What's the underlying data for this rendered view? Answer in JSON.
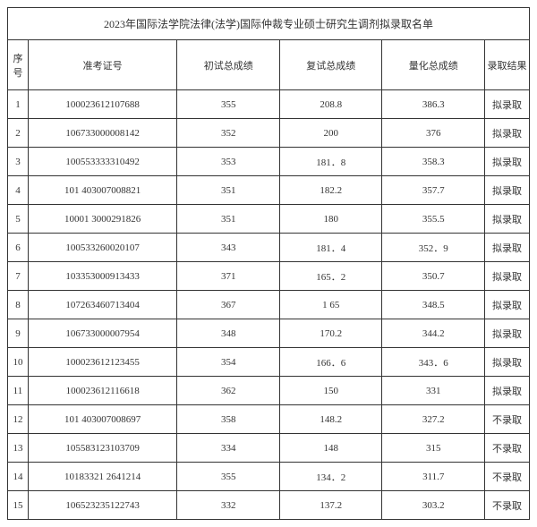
{
  "table": {
    "title": "2023年国际法学院法律(法学)国际仲裁专业硕士研究生调剂拟录取名单",
    "headers": {
      "seq": "序号",
      "exam_id": "准考证号",
      "score1": "初试总成绩",
      "score2": "复试总成绩",
      "score3": "量化总成绩",
      "result": "录取结果"
    },
    "rows": [
      {
        "seq": "1",
        "exam_id": "100023612107688",
        "score1": "355",
        "score2": "208.8",
        "score3": "386.3",
        "result": "拟录取"
      },
      {
        "seq": "2",
        "exam_id": "106733000008142",
        "score1": "352",
        "score2": "200",
        "score3": "376",
        "result": "拟录取"
      },
      {
        "seq": "3",
        "exam_id": "100553333310492",
        "score1": "353",
        "score2": "181．8",
        "score3": "358.3",
        "result": "拟录取"
      },
      {
        "seq": "4",
        "exam_id": "101 403007008821",
        "score1": "351",
        "score2": "182.2",
        "score3": "357.7",
        "result": "拟录取"
      },
      {
        "seq": "5",
        "exam_id": "10001 3000291826",
        "score1": "351",
        "score2": "180",
        "score3": "355.5",
        "result": "拟录取"
      },
      {
        "seq": "6",
        "exam_id": "100533260020107",
        "score1": "343",
        "score2": "181．4",
        "score3": "352．9",
        "result": "拟录取"
      },
      {
        "seq": "7",
        "exam_id": "103353000913433",
        "score1": "371",
        "score2": "165．2",
        "score3": "350.7",
        "result": "拟录取"
      },
      {
        "seq": "8",
        "exam_id": "107263460713404",
        "score1": "367",
        "score2": "1 65",
        "score3": "348.5",
        "result": "拟录取"
      },
      {
        "seq": "9",
        "exam_id": "106733000007954",
        "score1": "348",
        "score2": "170.2",
        "score3": "344.2",
        "result": "拟录取"
      },
      {
        "seq": "10",
        "exam_id": "100023612123455",
        "score1": "354",
        "score2": "166．6",
        "score3": "343．6",
        "result": "拟录取"
      },
      {
        "seq": "11",
        "exam_id": "100023612116618",
        "score1": "362",
        "score2": "150",
        "score3": "331",
        "result": "拟录取"
      },
      {
        "seq": "12",
        "exam_id": "101 403007008697",
        "score1": "358",
        "score2": "148.2",
        "score3": "327.2",
        "result": "不录取"
      },
      {
        "seq": "13",
        "exam_id": "105583123103709",
        "score1": "334",
        "score2": "148",
        "score3": "315",
        "result": "不录取"
      },
      {
        "seq": "14",
        "exam_id": "10183321 2641214",
        "score1": "355",
        "score2": "134．2",
        "score3": "311.7",
        "result": "不录取"
      },
      {
        "seq": "15",
        "exam_id": "106523235122743",
        "score1": "332",
        "score2": "137.2",
        "score3": "303.2",
        "result": "不录取"
      }
    ],
    "style": {
      "border_color": "#333333",
      "text_color": "#333333",
      "background_color": "#ffffff",
      "title_fontsize": 12,
      "header_fontsize": 11,
      "cell_fontsize": 11,
      "font_family": "SimSun"
    }
  }
}
